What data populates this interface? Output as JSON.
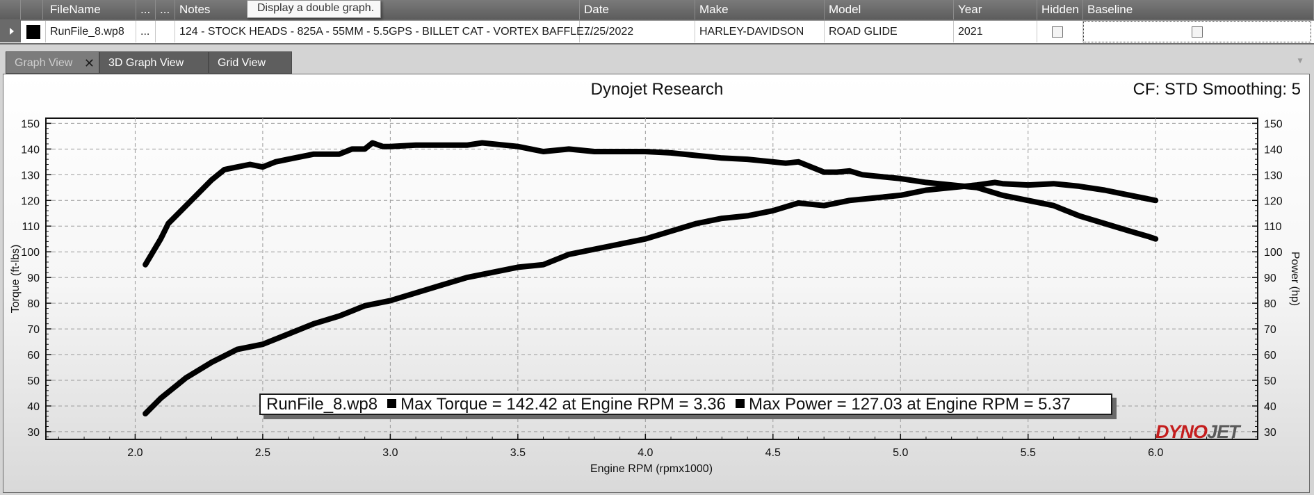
{
  "grid": {
    "headers": {
      "filename": "FileName",
      "dots1": "...",
      "dots2": "...",
      "notes": "Notes",
      "date": "Date",
      "make": "Make",
      "model": "Model",
      "year": "Year",
      "hidden": "Hidden",
      "baseline": "Baseline"
    },
    "tooltip": "Display a double graph.",
    "row": {
      "color": "#000000",
      "filename": "RunFile_8.wp8",
      "dots": "...",
      "notes": "124 - STOCK HEADS - 825A - 55MM - 5.5GPS - BILLET CAT - VORTEX BAFFLE...",
      "date": "7/25/2022",
      "make": "HARLEY-DAVIDSON",
      "model": "ROAD GLIDE",
      "year": "2021",
      "hidden": false,
      "baseline": false
    }
  },
  "tabs": [
    {
      "label": "Graph View",
      "active": true
    },
    {
      "label": "3D Graph View",
      "active": false
    },
    {
      "label": "Grid View",
      "active": false
    }
  ],
  "graph": {
    "title": "Dynojet Research",
    "cf_text": "CF: STD Smoothing: 5",
    "legend": {
      "run": "RunFile_8.wp8",
      "torque": "Max Torque = 142.42 at Engine RPM = 3.36",
      "power": "Max Power = 127.03 at Engine RPM = 5.37"
    },
    "logo": {
      "part1": "DYNO",
      "part2": "JET"
    }
  },
  "chart_data": {
    "type": "line",
    "title": "Dynojet Research",
    "xlabel": "Engine RPM (rpmx1000)",
    "ylabel": "Torque (ft-lbs)",
    "y2label": "Power (hp)",
    "xlim": [
      1.65,
      6.4
    ],
    "ylim": [
      27,
      152
    ],
    "y2lim": [
      27,
      152
    ],
    "xticks": [
      "2.0",
      "2.5",
      "3.0",
      "3.5",
      "4.0",
      "4.5",
      "5.0",
      "5.5",
      "6.0"
    ],
    "yticks": [
      "30",
      "40",
      "50",
      "60",
      "70",
      "80",
      "90",
      "100",
      "110",
      "120",
      "130",
      "140",
      "150"
    ],
    "grid": true,
    "series": [
      {
        "name": "Torque",
        "axis": "left",
        "x": [
          2.04,
          2.07,
          2.1,
          2.13,
          2.2,
          2.3,
          2.35,
          2.4,
          2.45,
          2.5,
          2.55,
          2.6,
          2.7,
          2.8,
          2.85,
          2.9,
          2.93,
          2.97,
          3.0,
          3.1,
          3.2,
          3.3,
          3.36,
          3.4,
          3.5,
          3.6,
          3.7,
          3.8,
          3.9,
          4.0,
          4.1,
          4.2,
          4.3,
          4.4,
          4.5,
          4.55,
          4.6,
          4.65,
          4.7,
          4.75,
          4.8,
          4.85,
          4.9,
          5.0,
          5.1,
          5.2,
          5.3,
          5.4,
          5.5,
          5.6,
          5.7,
          5.8,
          5.9,
          5.97,
          6.0
        ],
        "values": [
          95,
          100,
          105,
          111,
          118,
          128,
          132,
          133,
          134,
          133,
          135,
          136,
          138,
          138,
          140,
          140,
          142.4,
          141,
          141,
          141.5,
          141.5,
          141.5,
          142.4,
          142,
          141,
          139,
          140,
          139,
          139,
          139,
          138.5,
          137.5,
          136.5,
          136,
          135,
          134.5,
          135,
          133,
          131,
          131,
          131.5,
          130,
          129.5,
          128.5,
          127,
          126,
          125,
          122,
          120,
          118,
          114,
          111,
          108,
          106,
          105
        ]
      },
      {
        "name": "Power",
        "axis": "right",
        "x": [
          2.04,
          2.1,
          2.2,
          2.3,
          2.4,
          2.5,
          2.6,
          2.7,
          2.8,
          2.9,
          3.0,
          3.1,
          3.2,
          3.3,
          3.4,
          3.5,
          3.6,
          3.7,
          3.8,
          3.9,
          4.0,
          4.1,
          4.2,
          4.3,
          4.4,
          4.5,
          4.6,
          4.7,
          4.8,
          4.9,
          5.0,
          5.1,
          5.2,
          5.3,
          5.37,
          5.4,
          5.5,
          5.6,
          5.7,
          5.8,
          5.9,
          6.0
        ],
        "values": [
          37,
          43,
          51,
          57,
          62,
          64,
          68,
          72,
          75,
          79,
          81,
          84,
          87,
          90,
          92,
          94,
          95,
          99,
          101,
          103,
          105,
          108,
          111,
          113,
          114,
          116,
          119,
          118,
          120,
          121,
          122,
          124,
          125,
          126,
          127,
          126.5,
          126,
          126.5,
          125.5,
          124,
          122,
          120
        ]
      }
    ]
  }
}
